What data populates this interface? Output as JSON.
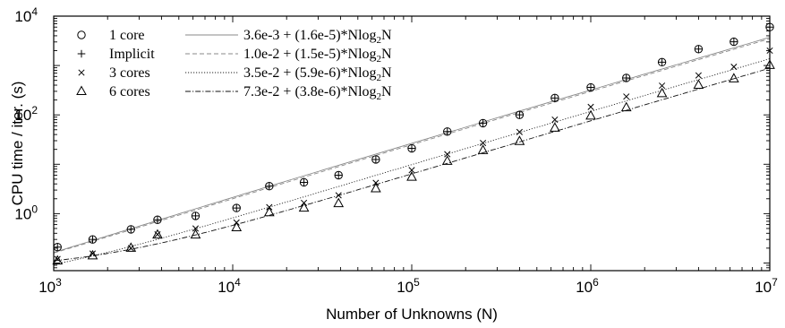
{
  "chart_data": {
    "type": "scatter",
    "xscale": "log",
    "yscale": "log",
    "xlim": [
      1000,
      10000000
    ],
    "ylim": [
      0.07,
      10000
    ],
    "xlabel": "Number of Unknowns (N)",
    "ylabel": "CPU time / iter. (s)",
    "x_ticks": [
      {
        "base": "10",
        "exp": "3"
      },
      {
        "base": "10",
        "exp": "4"
      },
      {
        "base": "10",
        "exp": "5"
      },
      {
        "base": "10",
        "exp": "6"
      },
      {
        "base": "10",
        "exp": "7"
      }
    ],
    "y_ticks": [
      {
        "base": "10",
        "exp": "0"
      },
      {
        "base": "10",
        "exp": "2"
      },
      {
        "base": "10",
        "exp": "4"
      }
    ],
    "grid": false,
    "legend_placement": "top-left",
    "x": [
      1050,
      1650,
      2700,
      3800,
      6200,
      10500,
      16000,
      25000,
      39000,
      63000,
      100000,
      158000,
      250000,
      400000,
      630000,
      1000000,
      1580000,
      2500000,
      4000000,
      6300000,
      10000000
    ],
    "series": [
      {
        "name": "1 core",
        "marker": "circle",
        "fit_label": "3.6e-3 + (1.6e-5)*Nlog",
        "fit_sub": "2",
        "fit_tail": "N",
        "fit": {
          "a": 0.0036,
          "b": 1.6e-05
        },
        "line_style": "solid",
        "values": [
          0.21,
          0.3,
          0.48,
          0.75,
          0.9,
          1.3,
          3.6,
          4.3,
          6.0,
          12.5,
          21,
          46,
          68,
          100,
          220,
          360,
          560,
          1170,
          2150,
          3030,
          6000
        ]
      },
      {
        "name": "Implicit",
        "marker": "plus",
        "fit_label": "1.0e-2 + (1.5e-5)*Nlog",
        "fit_sub": "2",
        "fit_tail": "N",
        "fit": {
          "a": 0.01,
          "b": 1.5e-05
        },
        "line_style": "dashed",
        "values": [
          0.21,
          0.3,
          0.48,
          0.75,
          0.9,
          1.3,
          3.6,
          4.3,
          6.0,
          12.5,
          21,
          46,
          68,
          100,
          220,
          360,
          560,
          1170,
          2150,
          3030,
          6000
        ]
      },
      {
        "name": "3 cores",
        "marker": "x",
        "fit_label": "3.5e-2 + (5.9e-6)*Nlog",
        "fit_sub": "2",
        "fit_tail": "N",
        "fit": {
          "a": 0.035,
          "b": 5.9e-06
        },
        "line_style": "dotted",
        "values": [
          0.12,
          0.155,
          0.2,
          0.38,
          0.5,
          0.66,
          1.35,
          1.65,
          2.35,
          4.2,
          7.6,
          16,
          27,
          45,
          80,
          145,
          235,
          390,
          630,
          940,
          2000
        ]
      },
      {
        "name": "6 cores",
        "marker": "triangle",
        "fit_label": "7.3e-2 + (3.8e-6)*Nlog",
        "fit_sub": "2",
        "fit_tail": "N",
        "fit": {
          "a": 0.073,
          "b": 3.8e-06
        },
        "line_style": "dashdot",
        "values": [
          0.11,
          0.14,
          0.2,
          0.37,
          0.37,
          0.52,
          1.05,
          1.3,
          1.6,
          3.2,
          5.5,
          11.5,
          19,
          29,
          54,
          95,
          140,
          270,
          400,
          540,
          1010
        ]
      }
    ]
  }
}
